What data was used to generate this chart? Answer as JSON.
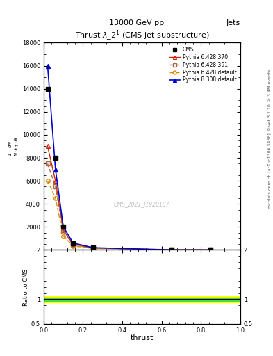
{
  "title_top": "13000 GeV pp",
  "title_top_right": "Jets",
  "plot_title": "Thrust $\\lambda\\_2^1$ (CMS jet substructure)",
  "watermark": "CMS_2021_I1920187",
  "right_label_top": "Rivet 3.1.10, ≥ 3.4M events",
  "right_label_bottom": "mcplots.cern.ch [arXiv:1306.3436]",
  "xlabel": "thrust",
  "ylabel_main": "$\\frac{1}{N}\\frac{dN}{dp_T\\,d\\lambda}$",
  "ylabel_ratio": "Ratio to CMS",
  "x_data": [
    0.02,
    0.06,
    0.1,
    0.15,
    0.25,
    0.65,
    0.85
  ],
  "cms_y": [
    14000,
    8000,
    2000,
    600,
    200,
    5,
    2
  ],
  "pythia6_370_y": [
    9000,
    6000,
    1700,
    500,
    180,
    5,
    2
  ],
  "pythia6_391_y": [
    7500,
    5500,
    1600,
    450,
    160,
    5,
    2
  ],
  "pythia6_default_y": [
    6000,
    4500,
    1200,
    350,
    130,
    40,
    2
  ],
  "pythia8_308_y": [
    16000,
    7000,
    2000,
    600,
    200,
    6,
    2
  ],
  "ratio_cms_band_green": [
    0.97,
    1.03
  ],
  "ratio_cms_band_yellow": [
    0.94,
    1.06
  ],
  "xlim": [
    0,
    1
  ],
  "ylim_main": [
    0,
    18000
  ],
  "ylim_ratio": [
    0.5,
    2.0
  ],
  "yticks_main": [
    2000,
    4000,
    6000,
    8000,
    10000,
    12000,
    14000,
    16000,
    18000
  ],
  "ytick_labels_main": [
    "2000",
    "4000",
    "6000",
    "8000",
    "10000",
    "12000",
    "14000",
    "16000",
    "18000"
  ],
  "colors": {
    "cms": "#000000",
    "pythia6_370": "#cc2200",
    "pythia6_391": "#aa6644",
    "pythia6_default": "#dd8800",
    "pythia8_308": "#0000cc"
  },
  "legend_labels": [
    "CMS",
    "Pythia 6.428 370",
    "Pythia 6.428 391",
    "Pythia 6.428 default",
    "Pythia 8.308 default"
  ]
}
